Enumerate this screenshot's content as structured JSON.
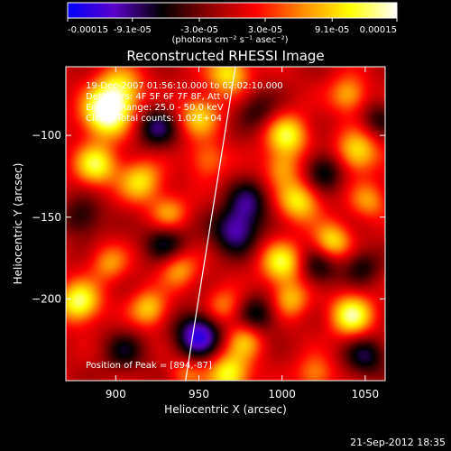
{
  "colorbar": {
    "tick_labels": [
      "-0.00015",
      "-9.1e-05",
      "-3.0e-05",
      "3.0e-05",
      "9.1e-05",
      "0.00015"
    ],
    "tick_values": [
      -0.00015,
      -9.1e-05,
      -3e-05,
      3e-05,
      9.1e-05,
      0.00015
    ],
    "range": [
      -0.00015,
      0.00015
    ],
    "units_label": "(photons cm⁻² s⁻¹ asec⁻²)",
    "colors": [
      "#0000ff",
      "#5a00c8",
      "#000000",
      "#8c0000",
      "#ff0000",
      "#ff8c00",
      "#ffff00",
      "#ffffff"
    ]
  },
  "chart_data": {
    "type": "heatmap",
    "title": "Reconstructed RHESSI Image",
    "xlabel": "Heliocentric X (arcsec)",
    "ylabel": "Heliocentric Y (arcsec)",
    "xlim": [
      870,
      1062
    ],
    "ylim": [
      -250,
      -58
    ],
    "x_ticks": [
      900,
      950,
      1000,
      1050
    ],
    "y_ticks": [
      -100,
      -150,
      -200
    ],
    "x_tick_labels": [
      "900",
      "950",
      "1000",
      "1050"
    ],
    "y_tick_labels": [
      "−100",
      "−150",
      "−200"
    ],
    "info_lines": [
      "19-Dec-2007 01:56:10.000 to 02:02:10.000",
      "Detectors: 4F 5F 6F 7F 8F, Att 0",
      "Energy Range: 25.0 - 50.0 keV",
      "Clean. Total counts: 1.02E+04"
    ],
    "peak_text": "Position of Peak = [894,-87]",
    "peak": [
      894,
      -87
    ],
    "limb_line": {
      "x": [
        942,
        972
      ],
      "y": [
        -250,
        -58
      ]
    },
    "blobs": [
      {
        "x": 894,
        "y": -87,
        "a": 1.0,
        "s": 10
      },
      {
        "x": 902,
        "y": -72,
        "a": 0.7,
        "s": 10
      },
      {
        "x": 888,
        "y": -118,
        "a": 0.75,
        "s": 9
      },
      {
        "x": 915,
        "y": -128,
        "a": 0.65,
        "s": 9
      },
      {
        "x": 932,
        "y": -148,
        "a": 0.5,
        "s": 8
      },
      {
        "x": 878,
        "y": -202,
        "a": 0.85,
        "s": 9
      },
      {
        "x": 896,
        "y": -178,
        "a": 0.45,
        "s": 8
      },
      {
        "x": 920,
        "y": -206,
        "a": 0.6,
        "s": 8
      },
      {
        "x": 938,
        "y": -182,
        "a": 0.5,
        "s": 8
      },
      {
        "x": 950,
        "y": -88,
        "a": 0.6,
        "s": 9
      },
      {
        "x": 955,
        "y": -115,
        "a": 0.4,
        "s": 8
      },
      {
        "x": 968,
        "y": -62,
        "a": 0.7,
        "s": 9
      },
      {
        "x": 1003,
        "y": -100,
        "a": 0.75,
        "s": 9
      },
      {
        "x": 1010,
        "y": -140,
        "a": 0.7,
        "s": 9
      },
      {
        "x": 1000,
        "y": -120,
        "a": 0.45,
        "s": 8
      },
      {
        "x": 1045,
        "y": -110,
        "a": 0.7,
        "s": 9
      },
      {
        "x": 1040,
        "y": -75,
        "a": 0.55,
        "s": 8
      },
      {
        "x": 1030,
        "y": -165,
        "a": 0.7,
        "s": 8
      },
      {
        "x": 1052,
        "y": -140,
        "a": 0.45,
        "s": 8
      },
      {
        "x": 1000,
        "y": -178,
        "a": 0.75,
        "s": 9
      },
      {
        "x": 1005,
        "y": -200,
        "a": 0.55,
        "s": 8
      },
      {
        "x": 1042,
        "y": -210,
        "a": 0.85,
        "s": 9
      },
      {
        "x": 965,
        "y": -205,
        "a": 0.45,
        "s": 8
      },
      {
        "x": 978,
        "y": -225,
        "a": 0.55,
        "s": 8
      },
      {
        "x": 968,
        "y": -246,
        "a": 0.8,
        "s": 9
      },
      {
        "x": 942,
        "y": -246,
        "a": 0.35,
        "s": 7
      },
      {
        "x": 1020,
        "y": -246,
        "a": 0.45,
        "s": 8
      },
      {
        "x": 925,
        "y": -95,
        "a": -0.55,
        "s": 9
      },
      {
        "x": 930,
        "y": -165,
        "a": -0.5,
        "s": 9
      },
      {
        "x": 950,
        "y": -222,
        "a": -0.85,
        "s": 10
      },
      {
        "x": 972,
        "y": -158,
        "a": -0.7,
        "s": 10
      },
      {
        "x": 980,
        "y": -140,
        "a": -0.5,
        "s": 9
      },
      {
        "x": 985,
        "y": -210,
        "a": -0.5,
        "s": 9
      },
      {
        "x": 1025,
        "y": -122,
        "a": -0.5,
        "s": 9
      },
      {
        "x": 1022,
        "y": -180,
        "a": -0.45,
        "s": 9
      },
      {
        "x": 1048,
        "y": -180,
        "a": -0.4,
        "s": 8
      },
      {
        "x": 1050,
        "y": -235,
        "a": -0.5,
        "s": 9
      },
      {
        "x": 905,
        "y": -232,
        "a": -0.4,
        "s": 9
      },
      {
        "x": 880,
        "y": -150,
        "a": -0.4,
        "s": 9
      },
      {
        "x": 985,
        "y": -85,
        "a": -0.35,
        "s": 9
      },
      {
        "x": 1058,
        "y": -90,
        "a": -0.35,
        "s": 8
      }
    ]
  },
  "footer": {
    "timestamp": "21-Sep-2012 18:35"
  }
}
